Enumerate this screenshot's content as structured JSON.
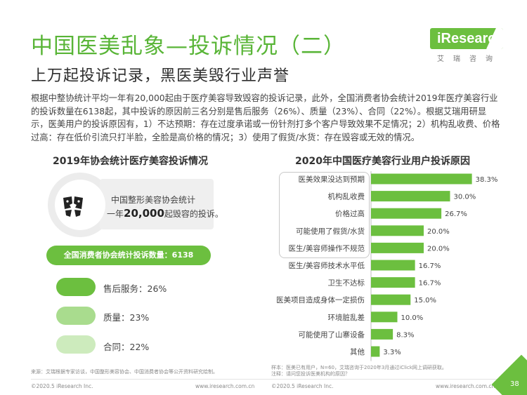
{
  "header": {
    "title": "中国医美乱象—投诉情况（二）",
    "subtitle": "上万起投诉记录，黑医美毁行业声誉",
    "logo_text": "iResearch",
    "logo_sub": "艾瑞咨询"
  },
  "intro_text": "根据中整协统计平均一年有20,000起由于医疗美容导致毁容的投诉记录，此外，全国消费者协会统计2019年医疗美容行业的投诉数量在6138起，其中投诉的原因前三名分别是售后服务（26%）、质量（23%）、合同（22%）。根据艾瑞用研显示，医美用户的投诉原因有，1）不达预期：存在过度承诺或一份针剂打多个客户导致效果不足情况；2）机构乱收费、价格过高：存在低价引流只打半脸，全脸是高价格的情况；3）使用了假货/水货：存在毁容或无效的情况。",
  "left": {
    "section_title": "2019年协会统计医疗美容投诉情况",
    "callout_line1": "中国整形美容协会统计",
    "callout_prefix": "一年",
    "callout_value": "20,000",
    "callout_suffix": "起毁容的投诉。",
    "total_label": "全国消费者协会统计投诉数量：6138",
    "reasons": [
      {
        "label": "售后服务：26%",
        "value": 26,
        "color": "#6cbf3f"
      },
      {
        "label": "质量：23%",
        "value": 23,
        "color": "#a9dc8e"
      },
      {
        "label": "合同：22%",
        "value": 22,
        "color": "#cdebbd"
      }
    ],
    "icon": "broken-face-icon"
  },
  "chart_data": {
    "type": "bar",
    "orientation": "horizontal",
    "title": "2020年中国医疗美容行业用户投诉原因",
    "categories": [
      "医美效果没达到预期",
      "机构乱收费",
      "价格过高",
      "可能使用了假货/水货",
      "医生/美容师操作不规范",
      "医生/美容师技术水平低",
      "卫生不达标",
      "医美项目造成身体一定损伤",
      "环境脏乱差",
      "可能使用了山寨设备",
      "其他"
    ],
    "values": [
      38.3,
      30.0,
      26.7,
      20.0,
      20.0,
      16.7,
      16.7,
      15.0,
      10.0,
      8.3,
      3.3
    ],
    "value_labels": [
      "38.3%",
      "30.0%",
      "26.7%",
      "20.0%",
      "20.0%",
      "16.7%",
      "16.7%",
      "15.0%",
      "10.0%",
      "8.3%",
      "3.3%"
    ],
    "highlighted_top": 5,
    "bar_color": "#6cbf3f",
    "xlim": [
      0,
      40
    ]
  },
  "footer": {
    "source_left": "来源：艾瑞根据专家访谈，中国整形美容协会、中国消费者协会等公开资料研究绘制。",
    "sample_note": "样本：医美已有用户，N=60，艾瑞咨询于2020年3月通过iClick网上调研获取。",
    "note": "注释：请问您投诉医美机构的原因？",
    "copyright_left": "©2020.5 iResearch Inc.",
    "url_left": "www.iresearch.com.cn",
    "copyright_right": "©2020.5 iResearch Inc.",
    "url_right": "www.iresearch.com.cn",
    "page_number": "38"
  }
}
